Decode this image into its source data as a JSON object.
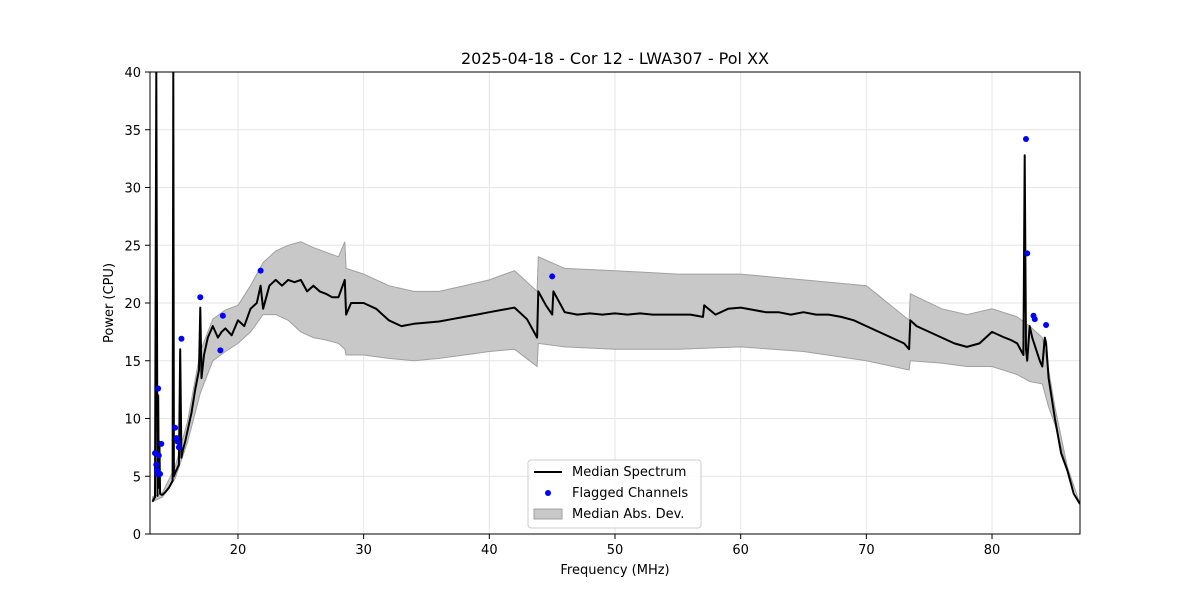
{
  "chart_data": {
    "type": "line",
    "title": "2025-04-18 - Cor 12 - LWA307 - Pol XX",
    "xlabel": "Frequency (MHz)",
    "ylabel": "Power (CPU)",
    "xlim": [
      13,
      87
    ],
    "ylim": [
      0,
      40
    ],
    "xticks": [
      20,
      30,
      40,
      50,
      60,
      70,
      80
    ],
    "yticks": [
      0,
      5,
      10,
      15,
      20,
      25,
      30,
      35,
      40
    ],
    "grid": true,
    "legend": {
      "position": "bottom-center",
      "entries": [
        "Median Spectrum",
        "Flagged Channels",
        "Median Abs. Dev."
      ]
    },
    "colors": {
      "median": "#000000",
      "flagged": "#0000ff",
      "band": "#c8c8c8",
      "band_edge": "#a0a0a0"
    },
    "series": [
      {
        "name": "Median Spectrum",
        "x": [
          13.2,
          13.4,
          13.5,
          13.6,
          13.65,
          13.7,
          13.75,
          13.8,
          13.9,
          14.0,
          14.2,
          14.5,
          14.8,
          14.85,
          14.9,
          15.0,
          15.3,
          15.4,
          15.5,
          15.6,
          15.8,
          16.0,
          16.3,
          16.6,
          16.9,
          17.0,
          17.1,
          17.3,
          17.6,
          18.0,
          18.4,
          18.7,
          19.0,
          19.5,
          20.0,
          20.5,
          21.0,
          21.5,
          21.8,
          22.0,
          22.5,
          23.0,
          23.5,
          24.0,
          24.5,
          25.0,
          25.5,
          26.0,
          26.5,
          27.0,
          27.5,
          28.0,
          28.5,
          28.6,
          29.0,
          30.0,
          31.0,
          32.0,
          33.0,
          34.0,
          35.0,
          36.0,
          37.0,
          38.0,
          39.0,
          40.0,
          41.0,
          42.0,
          43.0,
          43.8,
          43.9,
          44.5,
          45.0,
          45.1,
          46.0,
          47.0,
          48.0,
          49.0,
          50.0,
          51.0,
          52.0,
          53.0,
          54.0,
          55.0,
          56.0,
          57.0,
          57.1,
          58.0,
          59.0,
          60.0,
          61.0,
          62.0,
          63.0,
          64.0,
          65.0,
          66.0,
          67.0,
          68.0,
          69.0,
          70.0,
          71.0,
          72.0,
          73.0,
          73.4,
          73.5,
          74.0,
          75.0,
          76.0,
          77.0,
          78.0,
          79.0,
          80.0,
          81.0,
          81.5,
          82.0,
          82.5,
          82.6,
          82.7,
          82.8,
          83.0,
          83.2,
          83.5,
          83.8,
          84.0,
          84.2,
          84.3,
          84.5,
          85.0,
          85.5,
          86.0,
          86.5,
          87.0
        ],
        "y": [
          2.8,
          3.2,
          40,
          3.3,
          12,
          4,
          8,
          3.5,
          3.4,
          3.4,
          3.6,
          4.0,
          4.6,
          40,
          5.0,
          5.3,
          6.0,
          16,
          6.6,
          7.2,
          8.0,
          9.0,
          10.5,
          12.5,
          14.2,
          19.6,
          13.5,
          15.5,
          17.0,
          18.0,
          17.0,
          17.5,
          17.8,
          17.2,
          18.5,
          18.0,
          19.5,
          20.0,
          21.5,
          19.5,
          21.5,
          22.0,
          21.5,
          22.0,
          21.8,
          22.0,
          21.0,
          21.5,
          21.0,
          20.8,
          20.5,
          20.5,
          22.0,
          19.0,
          20.0,
          20.0,
          19.5,
          18.5,
          18.0,
          18.2,
          18.3,
          18.4,
          18.6,
          18.8,
          19.0,
          19.2,
          19.4,
          19.6,
          18.6,
          17.0,
          21.0,
          19.8,
          19.0,
          21.0,
          19.2,
          19.0,
          19.1,
          19.0,
          19.1,
          19.0,
          19.1,
          19.0,
          19.0,
          19.0,
          19.0,
          18.8,
          19.8,
          19.0,
          19.5,
          19.6,
          19.4,
          19.2,
          19.2,
          19.0,
          19.2,
          19.0,
          19.0,
          18.8,
          18.5,
          18.0,
          17.5,
          17.0,
          16.5,
          16.0,
          18.5,
          18.0,
          17.5,
          17.0,
          16.5,
          16.2,
          16.5,
          17.5,
          17.0,
          16.8,
          16.5,
          15.5,
          32.8,
          16.0,
          15.0,
          18.0,
          17.0,
          16.0,
          15.0,
          14.5,
          17.0,
          16.5,
          13.5,
          10.0,
          7.0,
          5.5,
          3.5,
          2.6
        ]
      },
      {
        "name": "Median Abs. Dev.",
        "x": [
          13.2,
          14.0,
          15.0,
          16.0,
          17.0,
          18.0,
          19.0,
          20.0,
          21.0,
          22.0,
          23.0,
          24.0,
          25.0,
          26.0,
          27.0,
          28.0,
          28.5,
          28.6,
          30.0,
          32.0,
          34.0,
          36.0,
          38.0,
          40.0,
          42.0,
          43.8,
          43.9,
          46.0,
          50.0,
          55.0,
          60.0,
          65.0,
          70.0,
          73.4,
          73.5,
          76.0,
          78.0,
          80.0,
          82.0,
          83.0,
          84.0,
          84.5,
          85.0,
          86.0,
          87.0
        ],
        "upper": [
          3.2,
          3.6,
          5.8,
          9.8,
          15.8,
          18.6,
          19.4,
          19.8,
          21.5,
          23.5,
          24.5,
          25.0,
          25.3,
          24.8,
          24.4,
          24.0,
          25.3,
          23.0,
          22.5,
          21.5,
          21.0,
          21.0,
          21.5,
          22.0,
          22.8,
          21.0,
          24.0,
          23.0,
          22.8,
          22.5,
          22.5,
          22.0,
          21.5,
          18.5,
          20.8,
          19.5,
          19.0,
          19.5,
          18.8,
          18.0,
          17.0,
          14.2,
          11.0,
          5.8,
          2.6
        ],
        "lower": [
          2.8,
          3.2,
          4.8,
          8.0,
          12.2,
          15.0,
          15.8,
          16.5,
          17.5,
          19.0,
          19.0,
          18.5,
          17.5,
          17.0,
          16.8,
          16.5,
          16.0,
          15.5,
          15.5,
          15.2,
          15.0,
          15.2,
          15.5,
          15.8,
          16.0,
          14.5,
          16.5,
          16.2,
          16.0,
          16.0,
          16.2,
          15.8,
          15.0,
          14.2,
          15.0,
          14.8,
          14.5,
          14.5,
          13.8,
          13.2,
          13.0,
          11.0,
          9.5,
          5.6,
          2.6
        ]
      },
      {
        "name": "Flagged Channels",
        "x": [
          13.4,
          13.5,
          13.55,
          13.6,
          13.65,
          13.7,
          13.8,
          13.9,
          15.0,
          15.1,
          15.2,
          15.3,
          15.5,
          17.0,
          18.6,
          18.8,
          21.8,
          45.0,
          82.7,
          82.8,
          83.3,
          83.4,
          84.3
        ],
        "y": [
          7.0,
          6.0,
          5.5,
          5.2,
          12.6,
          6.8,
          5.2,
          7.8,
          9.2,
          8.3,
          8.0,
          7.5,
          16.9,
          20.5,
          15.9,
          18.9,
          22.8,
          22.3,
          34.2,
          24.3,
          18.9,
          18.6,
          18.1
        ]
      }
    ]
  }
}
